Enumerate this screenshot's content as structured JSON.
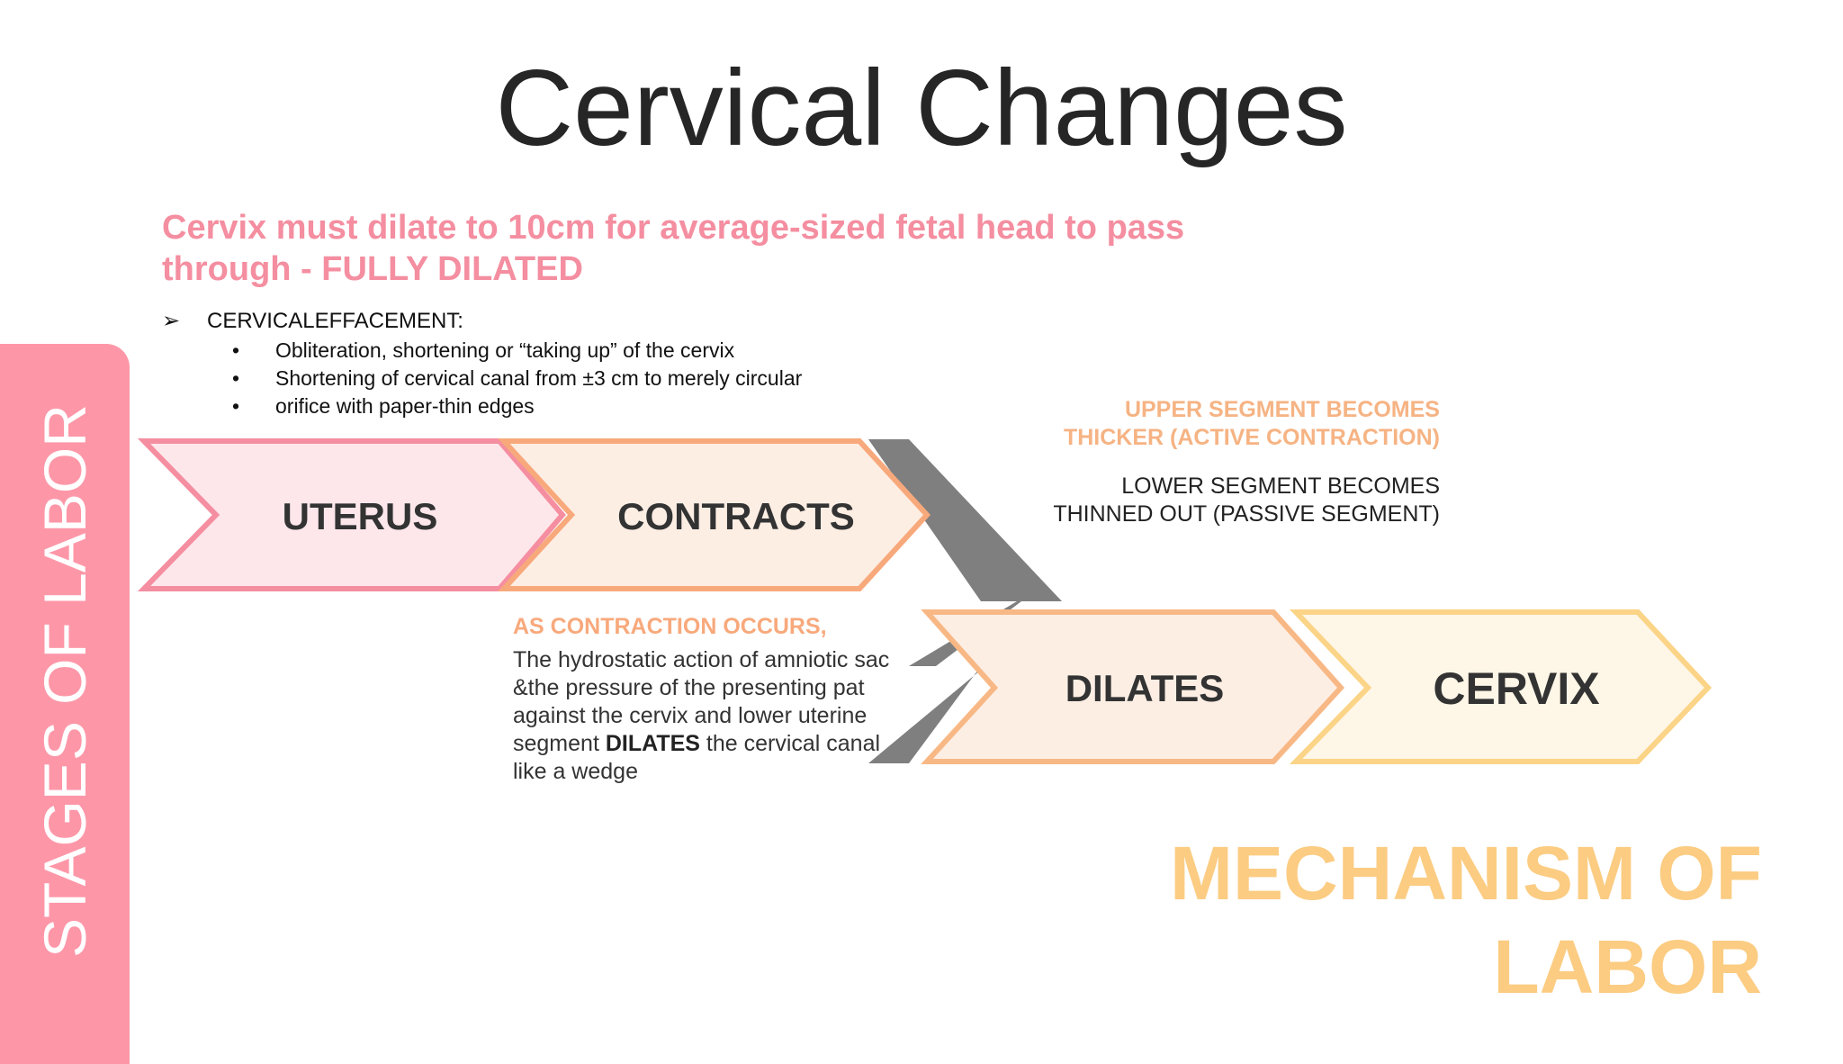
{
  "title": "Cervical Changes",
  "subtitle_line1": "Cervix must dilate to 10cm for average-sized fetal head to pass",
  "subtitle_line2": "through - FULLY DILATED",
  "effacement": {
    "arrow": "➢",
    "heading": "CERVICALEFFACEMENT:",
    "bullet_glyph": "•",
    "bullets": [
      "Obliteration, shortening or “taking up” of the cervix",
      "Shortening of cervical canal from ±3 cm to merely circular",
      "orifice with paper-thin edges"
    ]
  },
  "side_tab": {
    "label": "STAGES OF LABOR"
  },
  "chevrons": [
    {
      "label": "UTERUS",
      "fill": "#fde7eb",
      "stroke": "#f48ea0"
    },
    {
      "label": "CONTRACTS",
      "fill": "#fdeee4",
      "stroke": "#f8a97c"
    },
    {
      "label": "DILATES",
      "fill": "#fdeee4",
      "stroke": "#f8b885"
    },
    {
      "label": "CERVIX",
      "fill": "#fef6e7",
      "stroke": "#fbd487"
    }
  ],
  "connector_color": "#7f7f7f",
  "upper_segment": {
    "line1": "UPPER SEGMENT BECOMES",
    "line2": "THICKER (ACTIVE CONTRACTION)"
  },
  "lower_segment": {
    "line1": "LOWER SEGMENT BECOMES",
    "line2": "THINNED OUT (PASSIVE SEGMENT)"
  },
  "contraction": {
    "heading": "AS CONTRACTION OCCURS,",
    "body_before": "The hydrostatic action of amniotic sac &the pressure of the presenting pat against the cervix and lower uterine segment",
    "body_bold": "DILATES",
    "body_after": "the cervical canal like a wedge"
  },
  "mechanism": {
    "line1": "MECHANISM OF",
    "line2": "LABOR"
  },
  "colors": {
    "pink": "#f48ea0",
    "side_tab": "#fd97a8",
    "peach": "#f8a97c",
    "gold": "#fbcc82",
    "text": "#262626"
  }
}
